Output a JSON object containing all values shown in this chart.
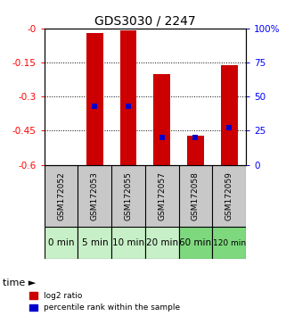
{
  "title": "GDS3030 / 2247",
  "samples": [
    "GSM172052",
    "GSM172053",
    "GSM172055",
    "GSM172057",
    "GSM172058",
    "GSM172059"
  ],
  "time_labels": [
    "0 min",
    "5 min",
    "10 min",
    "20 min",
    "60 min",
    "120 min"
  ],
  "bar_tops": [
    null,
    -0.02,
    -0.01,
    -0.2,
    -0.47,
    -0.16
  ],
  "bar_bottom": -0.6,
  "percentile_ranks": [
    null,
    43,
    43,
    20,
    20,
    27
  ],
  "ylim_min": -0.6,
  "ylim_max": 0,
  "yticks": [
    -0.6,
    -0.45,
    -0.3,
    -0.15,
    0
  ],
  "ytick_labels": [
    "-0.6",
    "-0.45",
    "-0.3",
    "-0.15",
    "-0"
  ],
  "right_yticks": [
    0,
    25,
    50,
    75,
    100
  ],
  "right_ytick_labels": [
    "0",
    "25",
    "50",
    "75",
    "100%"
  ],
  "bar_color": "#cc0000",
  "blue_color": "#0000cc",
  "bar_width": 0.5,
  "sample_bg_color": "#c8c8c8",
  "time_bg_colors": [
    "#c8f0c8",
    "#c8f0c8",
    "#c8f0c8",
    "#c8f0c8",
    "#7ed87e",
    "#7ed87e"
  ],
  "legend_red_label": "log2 ratio",
  "legend_blue_label": "percentile rank within the sample"
}
